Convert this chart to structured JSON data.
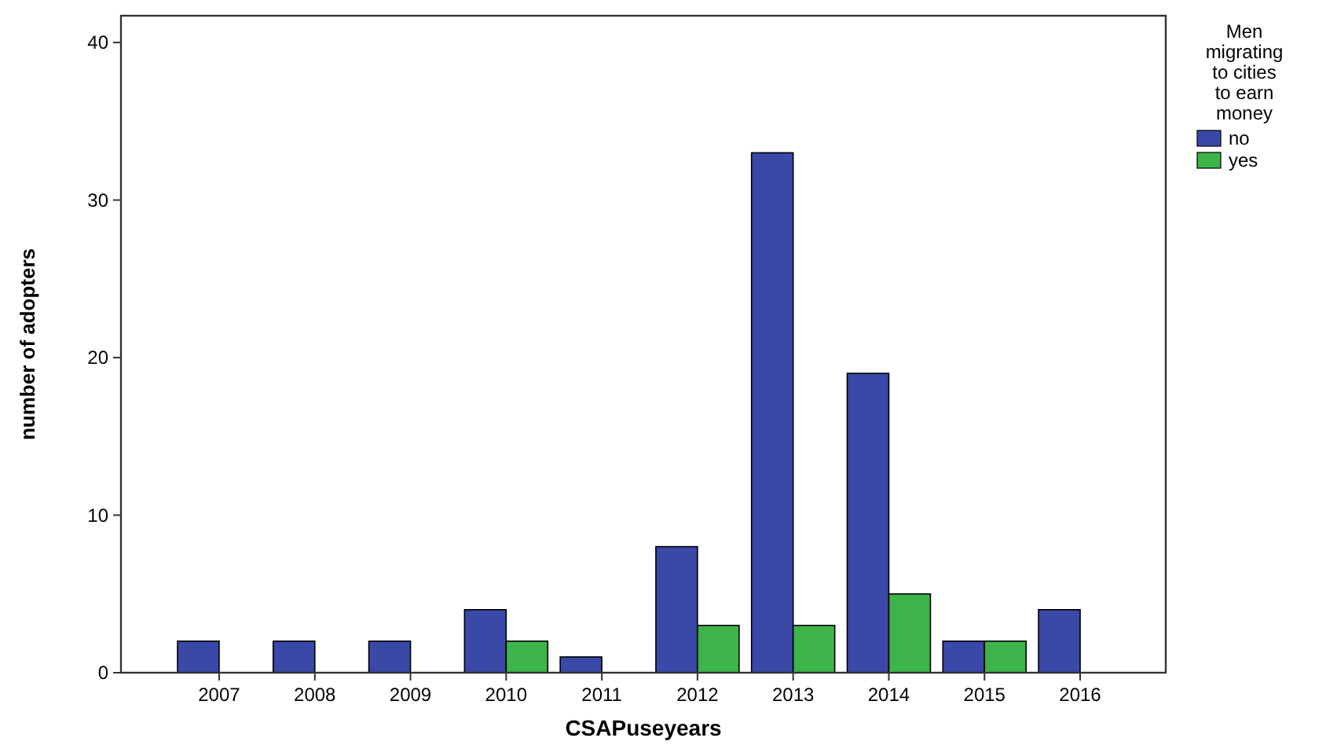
{
  "chart_data": {
    "type": "bar",
    "xlabel": "CSAPuseyears",
    "ylabel": "number of adopters",
    "legend_title": "Men migrating to cities to earn money",
    "categories": [
      "2007",
      "2008",
      "2009",
      "2010",
      "2011",
      "2012",
      "2013",
      "2014",
      "2015",
      "2016"
    ],
    "series": [
      {
        "name": "no",
        "color": "#3a48a8",
        "values": [
          2,
          2,
          2,
          4,
          1,
          8,
          33,
          19,
          2,
          4
        ]
      },
      {
        "name": "yes",
        "color": "#3cb44a",
        "values": [
          null,
          null,
          null,
          2,
          null,
          3,
          3,
          5,
          2,
          null
        ]
      }
    ],
    "ylim": [
      0,
      41.7
    ],
    "yticks": [
      0,
      10,
      20,
      30,
      40
    ],
    "grid": false,
    "legend": "top right"
  }
}
